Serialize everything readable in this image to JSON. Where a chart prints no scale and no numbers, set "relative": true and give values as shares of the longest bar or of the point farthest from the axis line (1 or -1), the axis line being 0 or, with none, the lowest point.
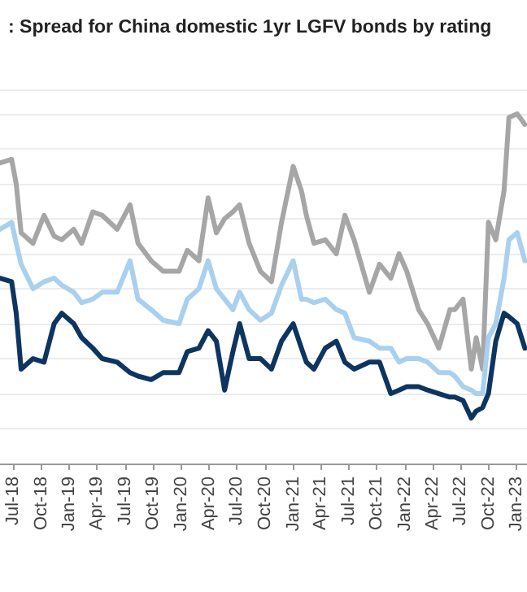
{
  "chart_data": {
    "type": "line",
    "title": ": Spread for China domestic 1yr LGFV bonds by rating",
    "relative": true,
    "grid": "y",
    "marker": "none",
    "line_style": "solid",
    "xlim": [
      "2018-05-19",
      "2023-02-04"
    ],
    "xticks": [
      {
        "value": "2018-07-01",
        "label": "Jul-18"
      },
      {
        "value": "2018-10-01",
        "label": "Oct-18"
      },
      {
        "value": "2019-01-01",
        "label": "Jan-19"
      },
      {
        "value": "2019-04-01",
        "label": "Apr-19"
      },
      {
        "value": "2019-07-01",
        "label": "Jul-19"
      },
      {
        "value": "2019-10-01",
        "label": "Oct-19"
      },
      {
        "value": "2020-01-01",
        "label": "Jan-20"
      },
      {
        "value": "2020-04-01",
        "label": "Apr-20"
      },
      {
        "value": "2020-07-01",
        "label": "Jul-20"
      },
      {
        "value": "2020-10-01",
        "label": "Oct-20"
      },
      {
        "value": "2021-01-01",
        "label": "Jan-21"
      },
      {
        "value": "2021-04-01",
        "label": "Apr-21"
      },
      {
        "value": "2021-07-01",
        "label": "Jul-21"
      },
      {
        "value": "2021-10-01",
        "label": "Oct-21"
      },
      {
        "value": "2022-01-01",
        "label": "Jan-22"
      },
      {
        "value": "2022-04-01",
        "label": "Apr-22"
      },
      {
        "value": "2022-07-01",
        "label": "Jul-22"
      },
      {
        "value": "2022-10-01",
        "label": "Oct-22"
      },
      {
        "value": "2023-01-01",
        "label": "Jan-23"
      }
    ],
    "x": [
      "2018-05-19",
      "2018-06-26",
      "2018-07-11",
      "2018-07-27",
      "2018-09-04",
      "2018-10-10",
      "2018-11-12",
      "2018-12-07",
      "2019-01-15",
      "2019-02-10",
      "2019-03-18",
      "2019-04-18",
      "2019-06-06",
      "2019-07-18",
      "2019-08-13",
      "2019-09-25",
      "2019-11-03",
      "2019-12-25",
      "2020-01-21",
      "2020-02-28",
      "2020-03-29",
      "2020-04-25",
      "2020-05-22",
      "2020-06-18",
      "2020-07-10",
      "2020-08-10",
      "2020-09-16",
      "2020-10-22",
      "2020-11-24",
      "2021-01-01",
      "2021-01-28",
      "2021-02-13",
      "2021-03-10",
      "2021-04-16",
      "2021-05-22",
      "2021-06-19",
      "2021-07-19",
      "2021-09-07",
      "2021-10-10",
      "2021-11-16",
      "2021-12-13",
      "2022-01-07",
      "2022-02-15",
      "2022-03-16",
      "2022-04-22",
      "2022-05-28",
      "2022-06-13",
      "2022-07-10",
      "2022-08-06",
      "2022-08-22",
      "2022-09-12",
      "2022-10-01",
      "2022-10-25",
      "2022-11-21",
      "2022-12-07",
      "2023-01-03",
      "2023-01-28"
    ],
    "series": [
      {
        "color": "#a6a6a6",
        "values": [
          0.86,
          0.87,
          0.8,
          0.66,
          0.63,
          0.71,
          0.65,
          0.64,
          0.67,
          0.63,
          0.72,
          0.71,
          0.67,
          0.74,
          0.63,
          0.58,
          0.55,
          0.55,
          0.61,
          0.58,
          0.76,
          0.66,
          0.7,
          0.72,
          0.74,
          0.63,
          0.55,
          0.52,
          0.69,
          0.85,
          0.78,
          0.71,
          0.63,
          0.64,
          0.6,
          0.71,
          0.64,
          0.49,
          0.57,
          0.53,
          0.6,
          0.55,
          0.44,
          0.4,
          0.33,
          0.44,
          0.44,
          0.47,
          0.27,
          0.36,
          0.27,
          0.69,
          0.64,
          0.78,
          0.99,
          1.0,
          0.97
        ]
      },
      {
        "color": "#a9d0ee",
        "values": [
          0.67,
          0.69,
          0.63,
          0.57,
          0.5,
          0.52,
          0.53,
          0.51,
          0.49,
          0.46,
          0.47,
          0.49,
          0.49,
          0.58,
          0.47,
          0.44,
          0.41,
          0.4,
          0.47,
          0.5,
          0.58,
          0.5,
          0.47,
          0.44,
          0.49,
          0.44,
          0.41,
          0.43,
          0.51,
          0.58,
          0.47,
          0.47,
          0.46,
          0.47,
          0.44,
          0.43,
          0.36,
          0.35,
          0.33,
          0.33,
          0.29,
          0.3,
          0.3,
          0.29,
          0.26,
          0.26,
          0.25,
          0.22,
          0.21,
          0.2,
          0.2,
          0.36,
          0.4,
          0.53,
          0.64,
          0.66,
          0.58
        ]
      },
      {
        "color": "#0d3560",
        "values": [
          0.53,
          0.52,
          0.43,
          0.27,
          0.3,
          0.29,
          0.4,
          0.43,
          0.4,
          0.36,
          0.33,
          0.3,
          0.29,
          0.26,
          0.25,
          0.24,
          0.26,
          0.26,
          0.32,
          0.33,
          0.38,
          0.35,
          0.21,
          0.32,
          0.4,
          0.3,
          0.3,
          0.27,
          0.35,
          0.4,
          0.33,
          0.29,
          0.27,
          0.33,
          0.35,
          0.29,
          0.27,
          0.29,
          0.29,
          0.2,
          0.21,
          0.22,
          0.22,
          0.21,
          0.2,
          0.19,
          0.19,
          0.18,
          0.13,
          0.15,
          0.16,
          0.2,
          0.35,
          0.43,
          0.42,
          0.4,
          0.33
        ]
      }
    ]
  }
}
